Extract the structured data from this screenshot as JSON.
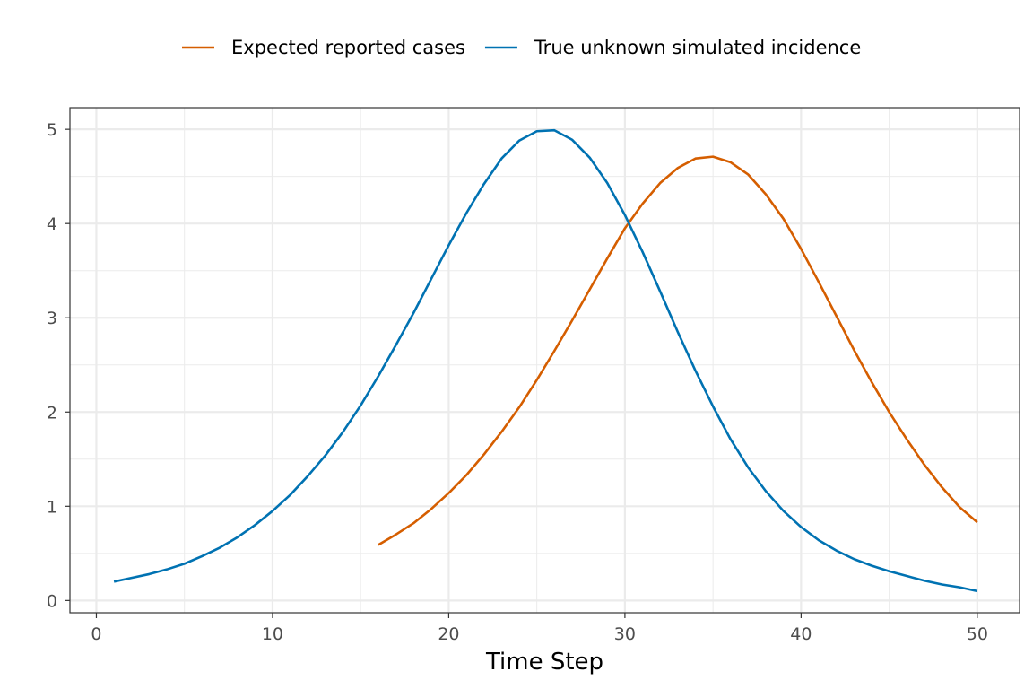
{
  "chart_data": {
    "type": "line",
    "title": "",
    "xlabel": "Time Step",
    "ylabel": "",
    "xlim": [
      -1.5,
      52.4
    ],
    "ylim": [
      -0.13,
      5.23
    ],
    "xticks": [
      0,
      10,
      20,
      30,
      40,
      50
    ],
    "yticks": [
      0,
      1,
      2,
      3,
      4,
      5
    ],
    "grid": true,
    "legend_position": "top",
    "series": [
      {
        "name": "Expected reported cases",
        "color": "#D55E00",
        "x": [
          16,
          17,
          18,
          19,
          20,
          21,
          22,
          23,
          24,
          25,
          26,
          27,
          28,
          29,
          30,
          31,
          32,
          33,
          34,
          35,
          36,
          37,
          38,
          39,
          40,
          41,
          42,
          43,
          44,
          45,
          46,
          47,
          48,
          49,
          50
        ],
        "y": [
          0.59,
          0.7,
          0.82,
          0.97,
          1.14,
          1.33,
          1.55,
          1.79,
          2.05,
          2.34,
          2.65,
          2.97,
          3.3,
          3.63,
          3.95,
          4.21,
          4.43,
          4.59,
          4.69,
          4.71,
          4.65,
          4.52,
          4.31,
          4.05,
          3.73,
          3.38,
          3.02,
          2.66,
          2.32,
          2.0,
          1.71,
          1.44,
          1.2,
          0.99,
          0.83
        ]
      },
      {
        "name": "True unknown simulated incidence",
        "color": "#0072B2",
        "x": [
          1,
          2,
          3,
          4,
          5,
          6,
          7,
          8,
          9,
          10,
          11,
          12,
          13,
          14,
          15,
          16,
          17,
          18,
          19,
          20,
          21,
          22,
          23,
          24,
          25,
          26,
          27,
          28,
          29,
          30,
          31,
          32,
          33,
          34,
          35,
          36,
          37,
          38,
          39,
          40,
          41,
          42,
          43,
          44,
          45,
          46,
          47,
          48,
          49,
          50
        ],
        "y": [
          0.2,
          0.24,
          0.28,
          0.33,
          0.39,
          0.47,
          0.56,
          0.67,
          0.8,
          0.95,
          1.12,
          1.32,
          1.54,
          1.79,
          2.07,
          2.38,
          2.71,
          3.05,
          3.41,
          3.77,
          4.11,
          4.42,
          4.69,
          4.88,
          4.98,
          4.99,
          4.89,
          4.7,
          4.43,
          4.09,
          3.7,
          3.28,
          2.85,
          2.44,
          2.06,
          1.71,
          1.41,
          1.16,
          0.95,
          0.78,
          0.64,
          0.53,
          0.44,
          0.37,
          0.31,
          0.26,
          0.21,
          0.17,
          0.14,
          0.1
        ]
      }
    ]
  }
}
